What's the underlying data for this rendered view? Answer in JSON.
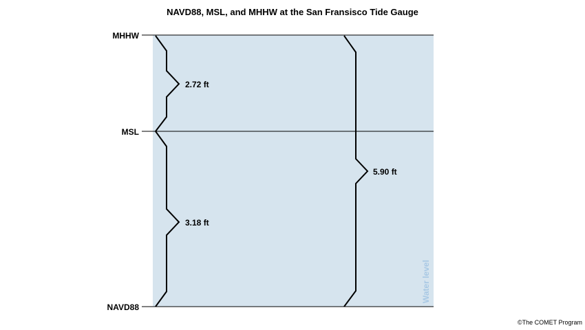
{
  "title": "NAVD88, MSL, and MHHW at the San Fransisco Tide Gauge",
  "levels": {
    "mhhw": "MHHW",
    "msl": "MSL",
    "navd88": "NAVD88"
  },
  "measurements": {
    "mhhw_to_msl": "2.72 ft",
    "msl_to_navd88": "3.18 ft",
    "mhhw_to_navd88": "5.90 ft"
  },
  "water_label": "Water level",
  "credit": "©The COMET Program",
  "colors": {
    "water_fill": "#d6e4ee",
    "water_label": "#a8c8e4",
    "lines": "#000000"
  }
}
